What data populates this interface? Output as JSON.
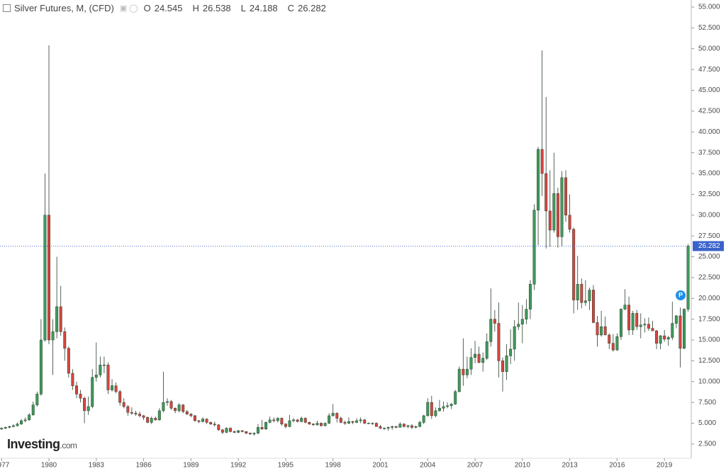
{
  "header": {
    "symbol": "Silver Futures, M, (CFD)",
    "open": {
      "label": "O",
      "value": 24.545
    },
    "high": {
      "label": "H",
      "value": 26.538
    },
    "low": {
      "label": "L",
      "value": 24.188
    },
    "close": {
      "label": "C",
      "value": 26.282
    }
  },
  "logo": {
    "brand": "Investing",
    "suffix": ".com"
  },
  "chart_data": {
    "type": "candlestick",
    "up_color": "#3d9b5a",
    "down_color": "#d9443f",
    "edge_color": "#2c3e2f",
    "grid": false,
    "last_price": 26.282,
    "last_price_color": "#3a62c9",
    "event_marker": "P",
    "xlim": [
      1976.9,
      2020.7
    ],
    "ylim": [
      0.79,
      55.85
    ],
    "xticks": [
      1977,
      1980,
      1983,
      1986,
      1989,
      1992,
      1995,
      1998,
      2001,
      2004,
      2007,
      2010,
      2013,
      2016,
      2019
    ],
    "yticks": [
      {
        "value": 2.5,
        "label": "2.500"
      },
      {
        "value": 5,
        "label": "5.000"
      },
      {
        "value": 7.5,
        "label": "7.500"
      },
      {
        "value": 10,
        "label": "10.000"
      },
      {
        "value": 12.5,
        "label": "12.500"
      },
      {
        "value": 15,
        "label": "15.000"
      },
      {
        "value": 17.5,
        "label": "17.500"
      },
      {
        "value": 20,
        "label": "20.000"
      },
      {
        "value": 22.5,
        "label": "22.500"
      },
      {
        "value": 25,
        "label": "25.000"
      },
      {
        "value": 27.5,
        "label": "27.500"
      },
      {
        "value": 30,
        "label": "30.000"
      },
      {
        "value": 32.5,
        "label": "32.500"
      },
      {
        "value": 35,
        "label": "35.000"
      },
      {
        "value": 37.5,
        "label": "37.500"
      },
      {
        "value": 40,
        "label": "40.000"
      },
      {
        "value": 42.5,
        "label": "42.500"
      },
      {
        "value": 45,
        "label": "45.000"
      },
      {
        "value": 47.5,
        "label": "47.500"
      },
      {
        "value": 50,
        "label": "50.000"
      },
      {
        "value": 52.5,
        "label": "52.500"
      },
      {
        "value": 55,
        "label": "55.000"
      }
    ],
    "x": [
      1977,
      1977.25,
      1977.5,
      1977.75,
      1978,
      1978.25,
      1978.5,
      1978.75,
      1979,
      1979.25,
      1979.5,
      1979.75,
      1980,
      1980.25,
      1980.5,
      1980.75,
      1981,
      1981.25,
      1981.5,
      1981.75,
      1982,
      1982.25,
      1982.5,
      1982.75,
      1983,
      1983.25,
      1983.5,
      1983.75,
      1984,
      1984.25,
      1984.5,
      1984.75,
      1985,
      1985.25,
      1985.5,
      1985.75,
      1986,
      1986.25,
      1986.5,
      1986.75,
      1987,
      1987.25,
      1987.5,
      1987.75,
      1988,
      1988.25,
      1988.5,
      1988.75,
      1989,
      1989.25,
      1989.5,
      1989.75,
      1990,
      1990.25,
      1990.5,
      1990.75,
      1991,
      1991.25,
      1991.5,
      1991.75,
      1992,
      1992.25,
      1992.5,
      1992.75,
      1993,
      1993.25,
      1993.5,
      1993.75,
      1994,
      1994.25,
      1994.5,
      1994.75,
      1995,
      1995.25,
      1995.5,
      1995.75,
      1996,
      1996.25,
      1996.5,
      1996.75,
      1997,
      1997.25,
      1997.5,
      1997.75,
      1998,
      1998.25,
      1998.5,
      1998.75,
      1999,
      1999.25,
      1999.5,
      1999.75,
      2000,
      2000.25,
      2000.5,
      2000.75,
      2001,
      2001.25,
      2001.5,
      2001.75,
      2002,
      2002.25,
      2002.5,
      2002.75,
      2003,
      2003.25,
      2003.5,
      2003.75,
      2004,
      2004.25,
      2004.5,
      2004.75,
      2005,
      2005.25,
      2005.5,
      2005.75,
      2006,
      2006.25,
      2006.5,
      2006.75,
      2007,
      2007.25,
      2007.5,
      2007.75,
      2008,
      2008.25,
      2008.5,
      2008.75,
      2009,
      2009.25,
      2009.5,
      2009.75,
      2010,
      2010.25,
      2010.5,
      2010.75,
      2011,
      2011.25,
      2011.5,
      2011.75,
      2012,
      2012.25,
      2012.5,
      2012.75,
      2013,
      2013.25,
      2013.5,
      2013.75,
      2014,
      2014.25,
      2014.5,
      2014.75,
      2015,
      2015.25,
      2015.5,
      2015.75,
      2016,
      2016.25,
      2016.5,
      2016.75,
      2017,
      2017.25,
      2017.5,
      2017.75,
      2018,
      2018.25,
      2018.5,
      2018.75,
      2019,
      2019.25,
      2019.5,
      2019.75,
      2020,
      2020.25,
      2020.5
    ],
    "ohlc": [
      [
        4.3,
        4.5,
        4.2,
        4.4
      ],
      [
        4.4,
        4.6,
        4.3,
        4.5
      ],
      [
        4.5,
        4.7,
        4.4,
        4.6
      ],
      [
        4.6,
        4.9,
        4.5,
        4.7
      ],
      [
        4.7,
        5.1,
        4.6,
        4.9
      ],
      [
        4.9,
        5.5,
        4.8,
        5.3
      ],
      [
        5.3,
        5.7,
        5.1,
        5.4
      ],
      [
        5.4,
        6.2,
        5.3,
        6.0
      ],
      [
        6.0,
        7.6,
        5.9,
        7.2
      ],
      [
        7.2,
        8.8,
        7.0,
        8.5
      ],
      [
        8.5,
        17.5,
        8.3,
        15.0
      ],
      [
        15.0,
        35.0,
        14.8,
        30.0
      ],
      [
        30.0,
        50.4,
        14.5,
        15.0
      ],
      [
        15.0,
        17.5,
        10.8,
        16.0
      ],
      [
        16.0,
        25.0,
        15.2,
        19.0
      ],
      [
        19.0,
        21.5,
        15.5,
        16.0
      ],
      [
        16.0,
        16.5,
        12.5,
        14.0
      ],
      [
        14.0,
        14.2,
        10.5,
        11.0
      ],
      [
        11.0,
        11.5,
        9.0,
        9.5
      ],
      [
        9.5,
        10.0,
        8.0,
        8.5
      ],
      [
        8.5,
        9.0,
        7.5,
        8.0
      ],
      [
        8.0,
        8.2,
        5.0,
        6.5
      ],
      [
        6.5,
        8.2,
        6.0,
        7.0
      ],
      [
        7.0,
        11.5,
        6.8,
        10.5
      ],
      [
        10.5,
        14.7,
        10.0,
        10.8
      ],
      [
        10.8,
        13.0,
        10.5,
        12.0
      ],
      [
        12.0,
        13.0,
        11.0,
        12.0
      ],
      [
        12.0,
        12.3,
        8.5,
        9.0
      ],
      [
        9.0,
        10.3,
        8.8,
        9.5
      ],
      [
        9.5,
        9.9,
        8.6,
        8.8
      ],
      [
        8.8,
        9.0,
        7.1,
        7.5
      ],
      [
        7.5,
        8.0,
        6.8,
        7.0
      ],
      [
        7.0,
        7.2,
        5.9,
        6.3
      ],
      [
        6.3,
        6.9,
        6.0,
        6.2
      ],
      [
        6.2,
        6.5,
        5.9,
        6.1
      ],
      [
        6.1,
        6.4,
        5.7,
        5.9
      ],
      [
        5.9,
        6.0,
        5.4,
        5.7
      ],
      [
        5.7,
        5.8,
        5.0,
        5.1
      ],
      [
        5.1,
        5.8,
        4.9,
        5.6
      ],
      [
        5.6,
        5.8,
        5.3,
        5.4
      ],
      [
        5.4,
        6.8,
        5.3,
        6.5
      ],
      [
        6.5,
        11.2,
        6.3,
        7.5
      ],
      [
        7.5,
        8.0,
        7.1,
        7.6
      ],
      [
        7.6,
        7.8,
        6.6,
        6.8
      ],
      [
        6.8,
        6.9,
        6.2,
        6.5
      ],
      [
        6.5,
        7.4,
        6.3,
        7.2
      ],
      [
        7.2,
        7.3,
        6.2,
        6.4
      ],
      [
        6.4,
        6.6,
        6.0,
        6.1
      ],
      [
        6.1,
        6.2,
        5.7,
        5.9
      ],
      [
        5.9,
        6.0,
        5.2,
        5.3
      ],
      [
        5.3,
        5.4,
        5.0,
        5.2
      ],
      [
        5.2,
        5.7,
        5.1,
        5.5
      ],
      [
        5.5,
        5.6,
        4.9,
        5.1
      ],
      [
        5.1,
        5.2,
        4.8,
        4.9
      ],
      [
        4.9,
        5.2,
        4.6,
        4.8
      ],
      [
        4.8,
        4.9,
        4.1,
        4.2
      ],
      [
        4.2,
        4.3,
        3.7,
        3.9
      ],
      [
        3.9,
        4.5,
        3.8,
        4.4
      ],
      [
        4.4,
        4.5,
        3.9,
        4.0
      ],
      [
        4.0,
        4.1,
        3.8,
        3.9
      ],
      [
        3.9,
        4.2,
        3.8,
        4.1
      ],
      [
        4.1,
        4.2,
        3.9,
        4.0
      ],
      [
        4.0,
        4.0,
        3.7,
        3.8
      ],
      [
        3.8,
        3.9,
        3.6,
        3.7
      ],
      [
        3.7,
        3.9,
        3.5,
        3.8
      ],
      [
        3.8,
        4.9,
        3.7,
        4.5
      ],
      [
        4.5,
        5.4,
        4.2,
        4.3
      ],
      [
        4.3,
        5.2,
        4.2,
        5.1
      ],
      [
        5.1,
        5.8,
        5.0,
        5.4
      ],
      [
        5.4,
        5.7,
        5.1,
        5.3
      ],
      [
        5.3,
        5.7,
        5.1,
        5.6
      ],
      [
        5.6,
        5.7,
        4.7,
        4.9
      ],
      [
        4.9,
        5.0,
        4.4,
        4.6
      ],
      [
        4.6,
        6.0,
        4.5,
        5.3
      ],
      [
        5.3,
        5.6,
        5.1,
        5.4
      ],
      [
        5.4,
        5.5,
        5.1,
        5.2
      ],
      [
        5.2,
        5.8,
        5.1,
        5.6
      ],
      [
        5.6,
        5.7,
        5.0,
        5.1
      ],
      [
        5.1,
        5.2,
        4.8,
        4.9
      ],
      [
        4.9,
        5.0,
        4.7,
        4.8
      ],
      [
        4.8,
        5.3,
        4.7,
        5.0
      ],
      [
        5.0,
        5.1,
        4.6,
        4.7
      ],
      [
        4.7,
        5.1,
        4.6,
        5.0
      ],
      [
        5.0,
        6.2,
        4.9,
        5.9
      ],
      [
        5.9,
        7.3,
        5.8,
        6.2
      ],
      [
        6.2,
        6.3,
        5.1,
        5.6
      ],
      [
        5.6,
        5.8,
        5.0,
        5.1
      ],
      [
        5.1,
        5.3,
        4.8,
        5.0
      ],
      [
        5.0,
        5.7,
        4.9,
        5.2
      ],
      [
        5.2,
        5.3,
        4.9,
        5.1
      ],
      [
        5.1,
        5.6,
        5.0,
        5.3
      ],
      [
        5.3,
        5.7,
        5.0,
        5.4
      ],
      [
        5.4,
        5.5,
        4.9,
        5.0
      ],
      [
        5.0,
        5.1,
        4.9,
        5.0
      ],
      [
        5.0,
        5.1,
        4.8,
        5.0
      ],
      [
        5.0,
        5.1,
        4.6,
        4.6
      ],
      [
        4.6,
        4.8,
        4.3,
        4.4
      ],
      [
        4.4,
        4.5,
        4.2,
        4.4
      ],
      [
        4.4,
        4.6,
        4.1,
        4.5
      ],
      [
        4.5,
        4.7,
        4.2,
        4.6
      ],
      [
        4.6,
        4.7,
        4.4,
        4.5
      ],
      [
        4.5,
        5.1,
        4.5,
        4.9
      ],
      [
        4.9,
        5.0,
        4.5,
        4.6
      ],
      [
        4.6,
        4.8,
        4.4,
        4.7
      ],
      [
        4.7,
        4.9,
        4.3,
        4.5
      ],
      [
        4.5,
        4.7,
        4.4,
        4.6
      ],
      [
        4.6,
        5.3,
        4.5,
        5.1
      ],
      [
        5.1,
        6.0,
        4.9,
        5.9
      ],
      [
        5.9,
        8.0,
        5.8,
        7.5
      ],
      [
        7.5,
        8.3,
        5.5,
        5.9
      ],
      [
        5.9,
        6.9,
        5.7,
        6.5
      ],
      [
        6.5,
        7.8,
        6.4,
        6.8
      ],
      [
        6.8,
        7.6,
        6.4,
        7.0
      ],
      [
        7.0,
        7.5,
        6.8,
        7.1
      ],
      [
        7.1,
        7.4,
        6.7,
        7.3
      ],
      [
        7.3,
        9.0,
        7.2,
        8.8
      ],
      [
        8.8,
        11.8,
        8.7,
        11.5
      ],
      [
        11.5,
        15.2,
        9.5,
        10.8
      ],
      [
        10.8,
        13.0,
        10.4,
        11.5
      ],
      [
        11.5,
        14.0,
        10.8,
        12.9
      ],
      [
        12.9,
        14.9,
        12.2,
        13.3
      ],
      [
        13.3,
        14.2,
        12.2,
        12.3
      ],
      [
        12.3,
        13.5,
        11.2,
        12.8
      ],
      [
        12.8,
        15.8,
        12.6,
        14.8
      ],
      [
        14.8,
        21.2,
        14.2,
        17.5
      ],
      [
        17.5,
        18.6,
        16.0,
        17.0
      ],
      [
        17.0,
        19.5,
        10.5,
        12.5
      ],
      [
        12.5,
        12.9,
        8.8,
        11.2
      ],
      [
        11.2,
        14.5,
        10.2,
        13.1
      ],
      [
        13.1,
        16.3,
        12.1,
        13.9
      ],
      [
        13.9,
        17.4,
        12.5,
        16.6
      ],
      [
        16.6,
        19.5,
        16.2,
        16.9
      ],
      [
        16.9,
        19.2,
        14.6,
        17.5
      ],
      [
        17.5,
        19.9,
        16.9,
        18.7
      ],
      [
        18.7,
        22.2,
        17.5,
        21.7
      ],
      [
        21.7,
        31.3,
        21.0,
        30.6
      ],
      [
        30.6,
        38.2,
        26.4,
        37.9
      ],
      [
        37.9,
        49.8,
        32.3,
        35.0
      ],
      [
        35.0,
        44.2,
        26.0,
        30.5
      ],
      [
        30.5,
        35.4,
        26.2,
        28.2
      ],
      [
        28.2,
        37.5,
        27.9,
        32.6
      ],
      [
        32.6,
        33.3,
        26.1,
        27.4
      ],
      [
        27.4,
        35.3,
        26.2,
        34.5
      ],
      [
        34.5,
        35.4,
        29.2,
        30.0
      ],
      [
        30.0,
        32.5,
        27.9,
        28.3
      ],
      [
        28.3,
        28.5,
        18.2,
        19.8
      ],
      [
        19.8,
        25.1,
        18.6,
        21.7
      ],
      [
        21.7,
        22.4,
        18.8,
        19.5
      ],
      [
        19.5,
        22.2,
        19.1,
        19.7
      ],
      [
        19.7,
        21.3,
        18.6,
        21.0
      ],
      [
        21.0,
        21.6,
        17.0,
        17.1
      ],
      [
        17.1,
        17.9,
        14.2,
        15.6
      ],
      [
        15.6,
        18.5,
        15.4,
        16.6
      ],
      [
        16.6,
        17.8,
        15.6,
        15.6
      ],
      [
        15.6,
        15.8,
        13.9,
        14.6
      ],
      [
        14.6,
        15.7,
        13.6,
        13.8
      ],
      [
        13.8,
        15.8,
        13.7,
        15.4
      ],
      [
        15.4,
        18.8,
        15.0,
        18.7
      ],
      [
        18.7,
        21.1,
        18.6,
        19.2
      ],
      [
        19.2,
        20.2,
        15.6,
        16.2
      ],
      [
        16.2,
        18.5,
        15.6,
        18.2
      ],
      [
        18.2,
        18.6,
        16.2,
        16.6
      ],
      [
        16.6,
        18.2,
        15.2,
        16.8
      ],
      [
        16.8,
        17.6,
        15.9,
        16.9
      ],
      [
        16.9,
        17.7,
        16.1,
        16.4
      ],
      [
        16.4,
        17.3,
        16.1,
        16.1
      ],
      [
        16.1,
        16.2,
        13.9,
        14.6
      ],
      [
        14.6,
        15.6,
        13.9,
        15.5
      ],
      [
        15.5,
        16.2,
        14.8,
        15.1
      ],
      [
        15.1,
        15.5,
        14.3,
        15.3
      ],
      [
        15.3,
        19.6,
        15.0,
        17.0
      ],
      [
        17.0,
        18.0,
        16.4,
        17.9
      ],
      [
        17.9,
        18.9,
        11.7,
        14.0
      ],
      [
        14.0,
        18.8,
        13.9,
        18.7
      ],
      [
        18.7,
        26.538,
        18.4,
        26.282
      ]
    ]
  }
}
